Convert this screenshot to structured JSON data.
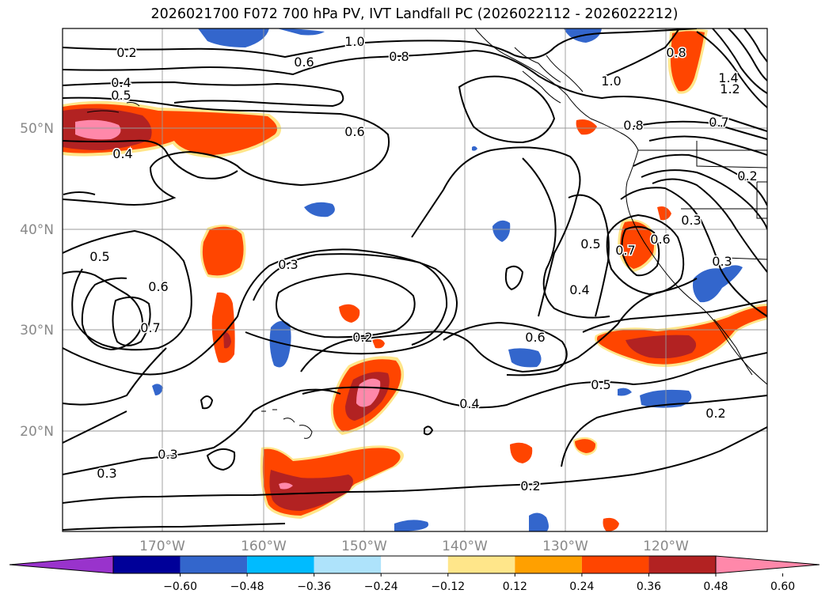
{
  "title": "2026021700 F072 700 hPa PV, IVT Landfall PC (2026022112 - 2026022212)",
  "latitude_labels": [
    "50°N",
    "40°N",
    "30°N",
    "20°N"
  ],
  "longitude_labels": [
    "170°W",
    "160°W",
    "150°W",
    "140°W",
    "130°W",
    "120°W"
  ],
  "colorbar": {
    "colors": [
      "#9933cc",
      "#000099",
      "#3366cc",
      "#00bbff",
      "#aee3fb",
      "#ffffff",
      "#ffe68a",
      "#ffa000",
      "#ff4500",
      "#b22222",
      "#ff88aa"
    ],
    "tick_labels": [
      "−0.60",
      "−0.48",
      "−0.36",
      "−0.24",
      "−0.12",
      "0.12",
      "0.24",
      "0.36",
      "0.48",
      "0.60"
    ]
  },
  "contour_labels": [
    "0.2",
    "1.0",
    "0.8",
    "0.6",
    "0.4",
    "0.5",
    "0.4",
    "0.6",
    "1.0",
    "0.8",
    "0.8",
    "1.2",
    "1.4",
    "0.7",
    "0.2",
    "0.5",
    "0.6",
    "0.7",
    "0.3",
    "0.3",
    "0.2",
    "0.5",
    "0.7",
    "0.6",
    "0.3",
    "0.4",
    "0.6",
    "0.5",
    "0.4",
    "0.2",
    "0.3",
    "0.3",
    "0.2"
  ],
  "colors": {
    "contour": "#000000",
    "grid": "#999999",
    "coast": "#000000"
  }
}
